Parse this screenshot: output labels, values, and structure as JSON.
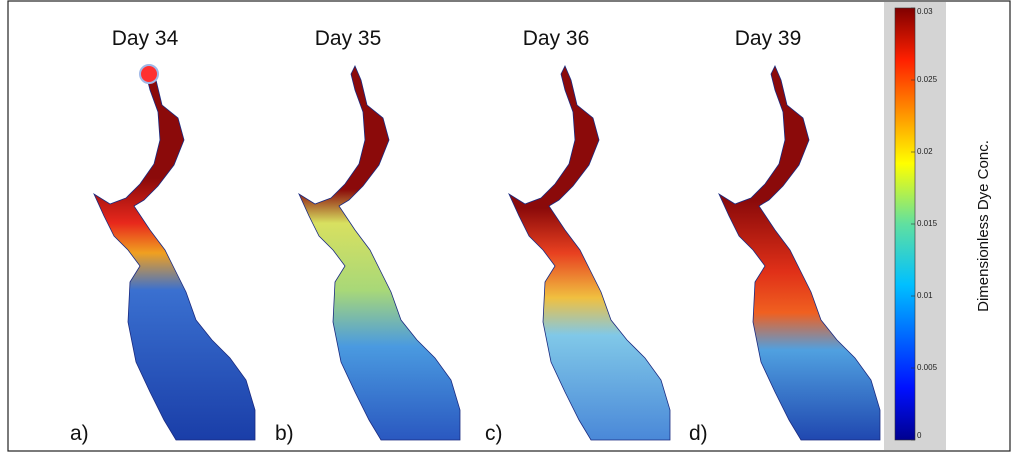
{
  "panels": [
    {
      "title": "Day 34",
      "label": "a)"
    },
    {
      "title": "Day 35",
      "label": "b)"
    },
    {
      "title": "Day 36",
      "label": "c)"
    },
    {
      "title": "Day 39",
      "label": "d)"
    }
  ],
  "colorbar": {
    "label": "Dimensionless Dye Conc.",
    "ticks": [
      0,
      0.005,
      0.01,
      0.015,
      0.02,
      0.025,
      0.03
    ]
  }
}
